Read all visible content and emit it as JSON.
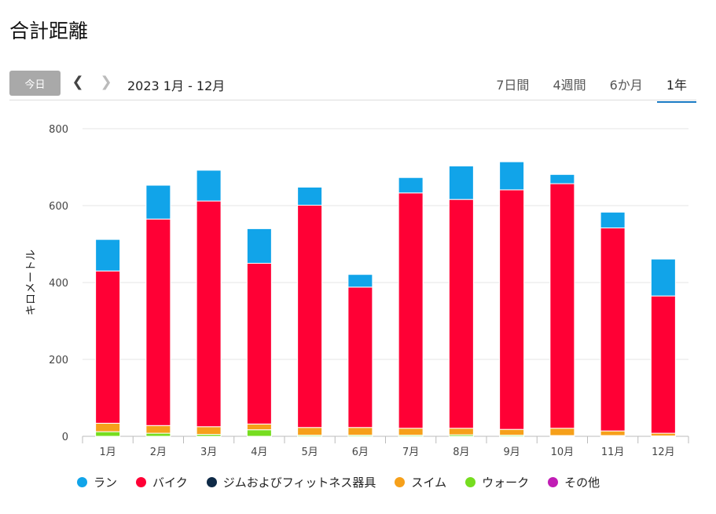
{
  "header": {
    "title": "合計距離",
    "today_label": "今日",
    "prev_icon": "chevron-left-icon",
    "next_icon": "chevron-right-icon",
    "range_label": "2023 1月 - 12月",
    "tabs": [
      "7日間",
      "4週間",
      "6か月",
      "1年"
    ],
    "active_tab": "1年"
  },
  "colors": {
    "ラン": "#11a4e9",
    "バイク": "#ff0035",
    "ジムおよびフィットネス器具": "#0e2a47",
    "スイム": "#f6a01a",
    "ウォーク": "#76dd1f",
    "その他": "#c11db5"
  },
  "chart_data": {
    "type": "bar",
    "stacked": true,
    "ylabel": "キロメートル",
    "ylim": [
      0,
      800
    ],
    "yticks": [
      0,
      200,
      400,
      600,
      800
    ],
    "categories": [
      "1月",
      "2月",
      "3月",
      "4月",
      "5月",
      "6月",
      "7月",
      "8月",
      "9月",
      "10月",
      "11月",
      "12月"
    ],
    "series": [
      {
        "name": "ウォーク",
        "values": [
          12,
          8,
          5,
          17,
          3,
          3,
          3,
          4,
          3,
          2,
          2,
          1
        ]
      },
      {
        "name": "スイム",
        "values": [
          22,
          20,
          20,
          15,
          20,
          20,
          18,
          17,
          15,
          19,
          12,
          7
        ]
      },
      {
        "name": "バイク",
        "values": [
          396,
          537,
          587,
          418,
          578,
          365,
          612,
          595,
          623,
          636,
          528,
          357
        ]
      },
      {
        "name": "ラン",
        "values": [
          82,
          88,
          80,
          90,
          47,
          33,
          40,
          87,
          73,
          24,
          41,
          96
        ]
      },
      {
        "name": "ジムおよびフィットネス器具",
        "values": [
          0,
          0,
          0,
          0,
          0,
          0,
          0,
          0,
          0,
          0,
          0,
          0
        ]
      },
      {
        "name": "その他",
        "values": [
          0,
          0,
          0,
          0,
          0,
          0,
          0,
          0,
          0,
          0,
          0,
          0
        ]
      }
    ],
    "legend": [
      "ラン",
      "バイク",
      "ジムおよびフィットネス器具",
      "スイム",
      "ウォーク",
      "その他"
    ],
    "legend_position": "bottom",
    "grid": true
  }
}
